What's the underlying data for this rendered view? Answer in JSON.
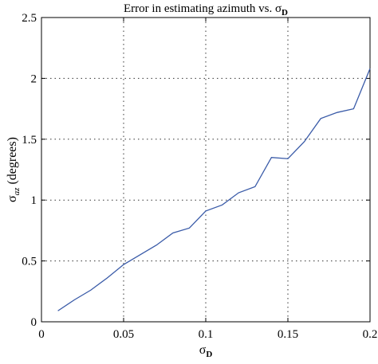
{
  "chart_data": {
    "type": "line",
    "title": "Error in estimating azimuth vs. σ",
    "title_subscript": "D",
    "xlabel": "σ",
    "xlabel_subscript": "D",
    "ylabel": "σ",
    "ylabel_subscript": "az",
    "ylabel_suffix": " (degrees)",
    "xlim": [
      0,
      0.2
    ],
    "ylim": [
      0,
      2.5
    ],
    "xticks": [
      0,
      0.05,
      0.1,
      0.15,
      0.2
    ],
    "xtick_labels": [
      "0",
      "0.05",
      "0.1",
      "0.15",
      "0.2"
    ],
    "yticks": [
      0,
      0.5,
      1,
      1.5,
      2,
      2.5
    ],
    "ytick_labels": [
      "0",
      "0.5",
      "1",
      "1.5",
      "2",
      "2.5"
    ],
    "grid": true,
    "series": [
      {
        "color": "#3a5ba8",
        "x": [
          0.01,
          0.02,
          0.03,
          0.04,
          0.05,
          0.06,
          0.07,
          0.08,
          0.09,
          0.1,
          0.11,
          0.12,
          0.13,
          0.14,
          0.15,
          0.16,
          0.17,
          0.18,
          0.19,
          0.2
        ],
        "y": [
          0.09,
          0.18,
          0.26,
          0.36,
          0.47,
          0.55,
          0.63,
          0.73,
          0.77,
          0.91,
          0.96,
          1.06,
          1.11,
          1.35,
          1.34,
          1.48,
          1.67,
          1.72,
          1.75,
          2.08
        ]
      }
    ]
  }
}
